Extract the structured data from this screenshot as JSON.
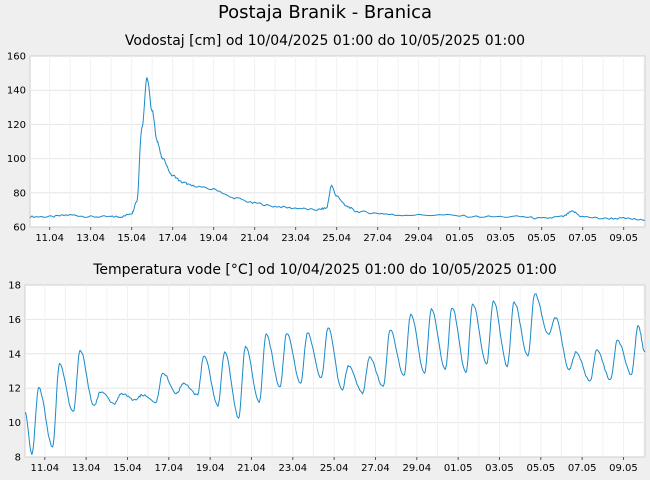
{
  "title": "Postaja Branik - Branica",
  "colors": {
    "line": "#1a8ac9",
    "grid": "#e6e6e6",
    "plot_bg": "#ffffff",
    "page_bg": "#efefef"
  },
  "chart_data": [
    {
      "type": "line",
      "title": "Vodostaj [cm] od 10/04/2025 01:00 do 10/05/2025 01:00",
      "xlabel": "",
      "ylabel": "",
      "xlim": [
        "2025-04-10 01:00",
        "2025-05-10 01:00"
      ],
      "ylim": [
        60,
        160
      ],
      "yticks": [
        60,
        80,
        100,
        120,
        140,
        160
      ],
      "xticks": [
        "11.04",
        "13.04",
        "15.04",
        "17.04",
        "19.04",
        "21.04",
        "23.04",
        "25.04",
        "27.04",
        "29.04",
        "01.05",
        "03.05",
        "05.05",
        "07.05",
        "09.05"
      ],
      "grid": true,
      "series": [
        {
          "x": [
            "2025-04-10 01:00",
            "2025-04-11 00:00",
            "2025-04-12 00:00",
            "2025-04-13 00:00",
            "2025-04-14 00:00",
            "2025-04-14 12:00",
            "2025-04-15 00:00",
            "2025-04-15 06:00",
            "2025-04-15 12:00",
            "2025-04-15 18:00",
            "2025-04-16 00:00",
            "2025-04-16 06:00",
            "2025-04-16 12:00",
            "2025-04-17 00:00",
            "2025-04-17 12:00",
            "2025-04-18 00:00",
            "2025-04-19 00:00",
            "2025-04-20 00:00",
            "2025-04-21 00:00",
            "2025-04-22 00:00",
            "2025-04-23 00:00",
            "2025-04-24 00:00",
            "2025-04-24 12:00",
            "2025-04-24 18:00",
            "2025-04-25 00:00",
            "2025-04-25 12:00",
            "2025-04-26 00:00",
            "2025-04-27 00:00",
            "2025-04-28 00:00",
            "2025-04-30 00:00",
            "2025-05-02 00:00",
            "2025-05-04 00:00",
            "2025-05-05 00:00",
            "2025-05-06 00:00",
            "2025-05-06 12:00",
            "2025-05-07 00:00",
            "2025-05-08 00:00",
            "2025-05-09 00:00",
            "2025-05-10 01:00"
          ],
          "values": [
            66,
            66,
            67,
            66,
            66,
            66,
            68,
            75,
            118,
            147,
            128,
            110,
            100,
            90,
            86,
            84,
            82,
            77,
            74,
            72,
            71,
            70,
            71,
            84,
            78,
            72,
            69,
            68,
            67,
            67,
            66,
            66,
            65,
            66,
            69,
            66,
            65,
            65,
            64
          ]
        }
      ]
    },
    {
      "type": "line",
      "title": "Temperatura vode [°C] od 10/04/2025 01:00 do 10/05/2025 01:00",
      "xlabel": "",
      "ylabel": "",
      "xlim": [
        "2025-04-10 01:00",
        "2025-05-10 01:00"
      ],
      "ylim": [
        8,
        18
      ],
      "yticks": [
        8,
        10,
        12,
        14,
        16,
        18
      ],
      "xticks": [
        "11.04",
        "13.04",
        "15.04",
        "17.04",
        "19.04",
        "21.04",
        "23.04",
        "25.04",
        "27.04",
        "29.04",
        "01.05",
        "03.05",
        "05.05",
        "07.05",
        "09.05"
      ],
      "grid": true,
      "series": [
        {
          "x": [
            "2025-04-10 01:00",
            "2025-04-10 09:00",
            "2025-04-10 17:00",
            "2025-04-11 09:00",
            "2025-04-11 17:00",
            "2025-04-12 09:00",
            "2025-04-12 17:00",
            "2025-04-13 09:00",
            "2025-04-13 17:00",
            "2025-04-14 09:00",
            "2025-04-14 17:00",
            "2025-04-15 09:00",
            "2025-04-15 17:00",
            "2025-04-16 09:00",
            "2025-04-16 17:00",
            "2025-04-17 09:00",
            "2025-04-17 17:00",
            "2025-04-18 09:00",
            "2025-04-18 17:00",
            "2025-04-19 09:00",
            "2025-04-19 17:00",
            "2025-04-20 09:00",
            "2025-04-20 17:00",
            "2025-04-21 09:00",
            "2025-04-21 17:00",
            "2025-04-22 09:00",
            "2025-04-22 17:00",
            "2025-04-23 09:00",
            "2025-04-23 17:00",
            "2025-04-24 09:00",
            "2025-04-24 17:00",
            "2025-04-25 09:00",
            "2025-04-25 17:00",
            "2025-04-26 09:00",
            "2025-04-26 17:00",
            "2025-04-27 09:00",
            "2025-04-27 17:00",
            "2025-04-28 09:00",
            "2025-04-28 17:00",
            "2025-04-29 09:00",
            "2025-04-29 17:00",
            "2025-04-30 09:00",
            "2025-04-30 17:00",
            "2025-05-01 09:00",
            "2025-05-01 17:00",
            "2025-05-02 09:00",
            "2025-05-02 17:00",
            "2025-05-03 09:00",
            "2025-05-03 17:00",
            "2025-05-04 09:00",
            "2025-05-04 17:00",
            "2025-05-05 09:00",
            "2025-05-05 17:00",
            "2025-05-06 09:00",
            "2025-05-06 17:00",
            "2025-05-07 09:00",
            "2025-05-07 17:00",
            "2025-05-08 09:00",
            "2025-05-08 17:00",
            "2025-05-09 09:00",
            "2025-05-09 17:00",
            "2025-05-10 01:00"
          ],
          "values": [
            10.6,
            8.2,
            12.0,
            8.6,
            13.4,
            10.6,
            14.2,
            11.0,
            11.8,
            11.1,
            11.7,
            11.3,
            11.6,
            11.2,
            12.9,
            11.7,
            12.3,
            11.6,
            13.9,
            11.0,
            14.1,
            10.3,
            14.4,
            11.2,
            15.1,
            12.1,
            15.2,
            12.3,
            15.2,
            12.6,
            15.5,
            11.9,
            13.3,
            11.7,
            13.8,
            12.1,
            15.4,
            12.7,
            16.3,
            12.9,
            16.6,
            13.1,
            16.7,
            12.9,
            16.9,
            13.4,
            17.1,
            13.3,
            17.0,
            13.9,
            17.5,
            15.1,
            16.1,
            13.1,
            14.1,
            12.4,
            14.2,
            12.5,
            14.8,
            12.8,
            15.6,
            14.1
          ]
        }
      ]
    }
  ]
}
